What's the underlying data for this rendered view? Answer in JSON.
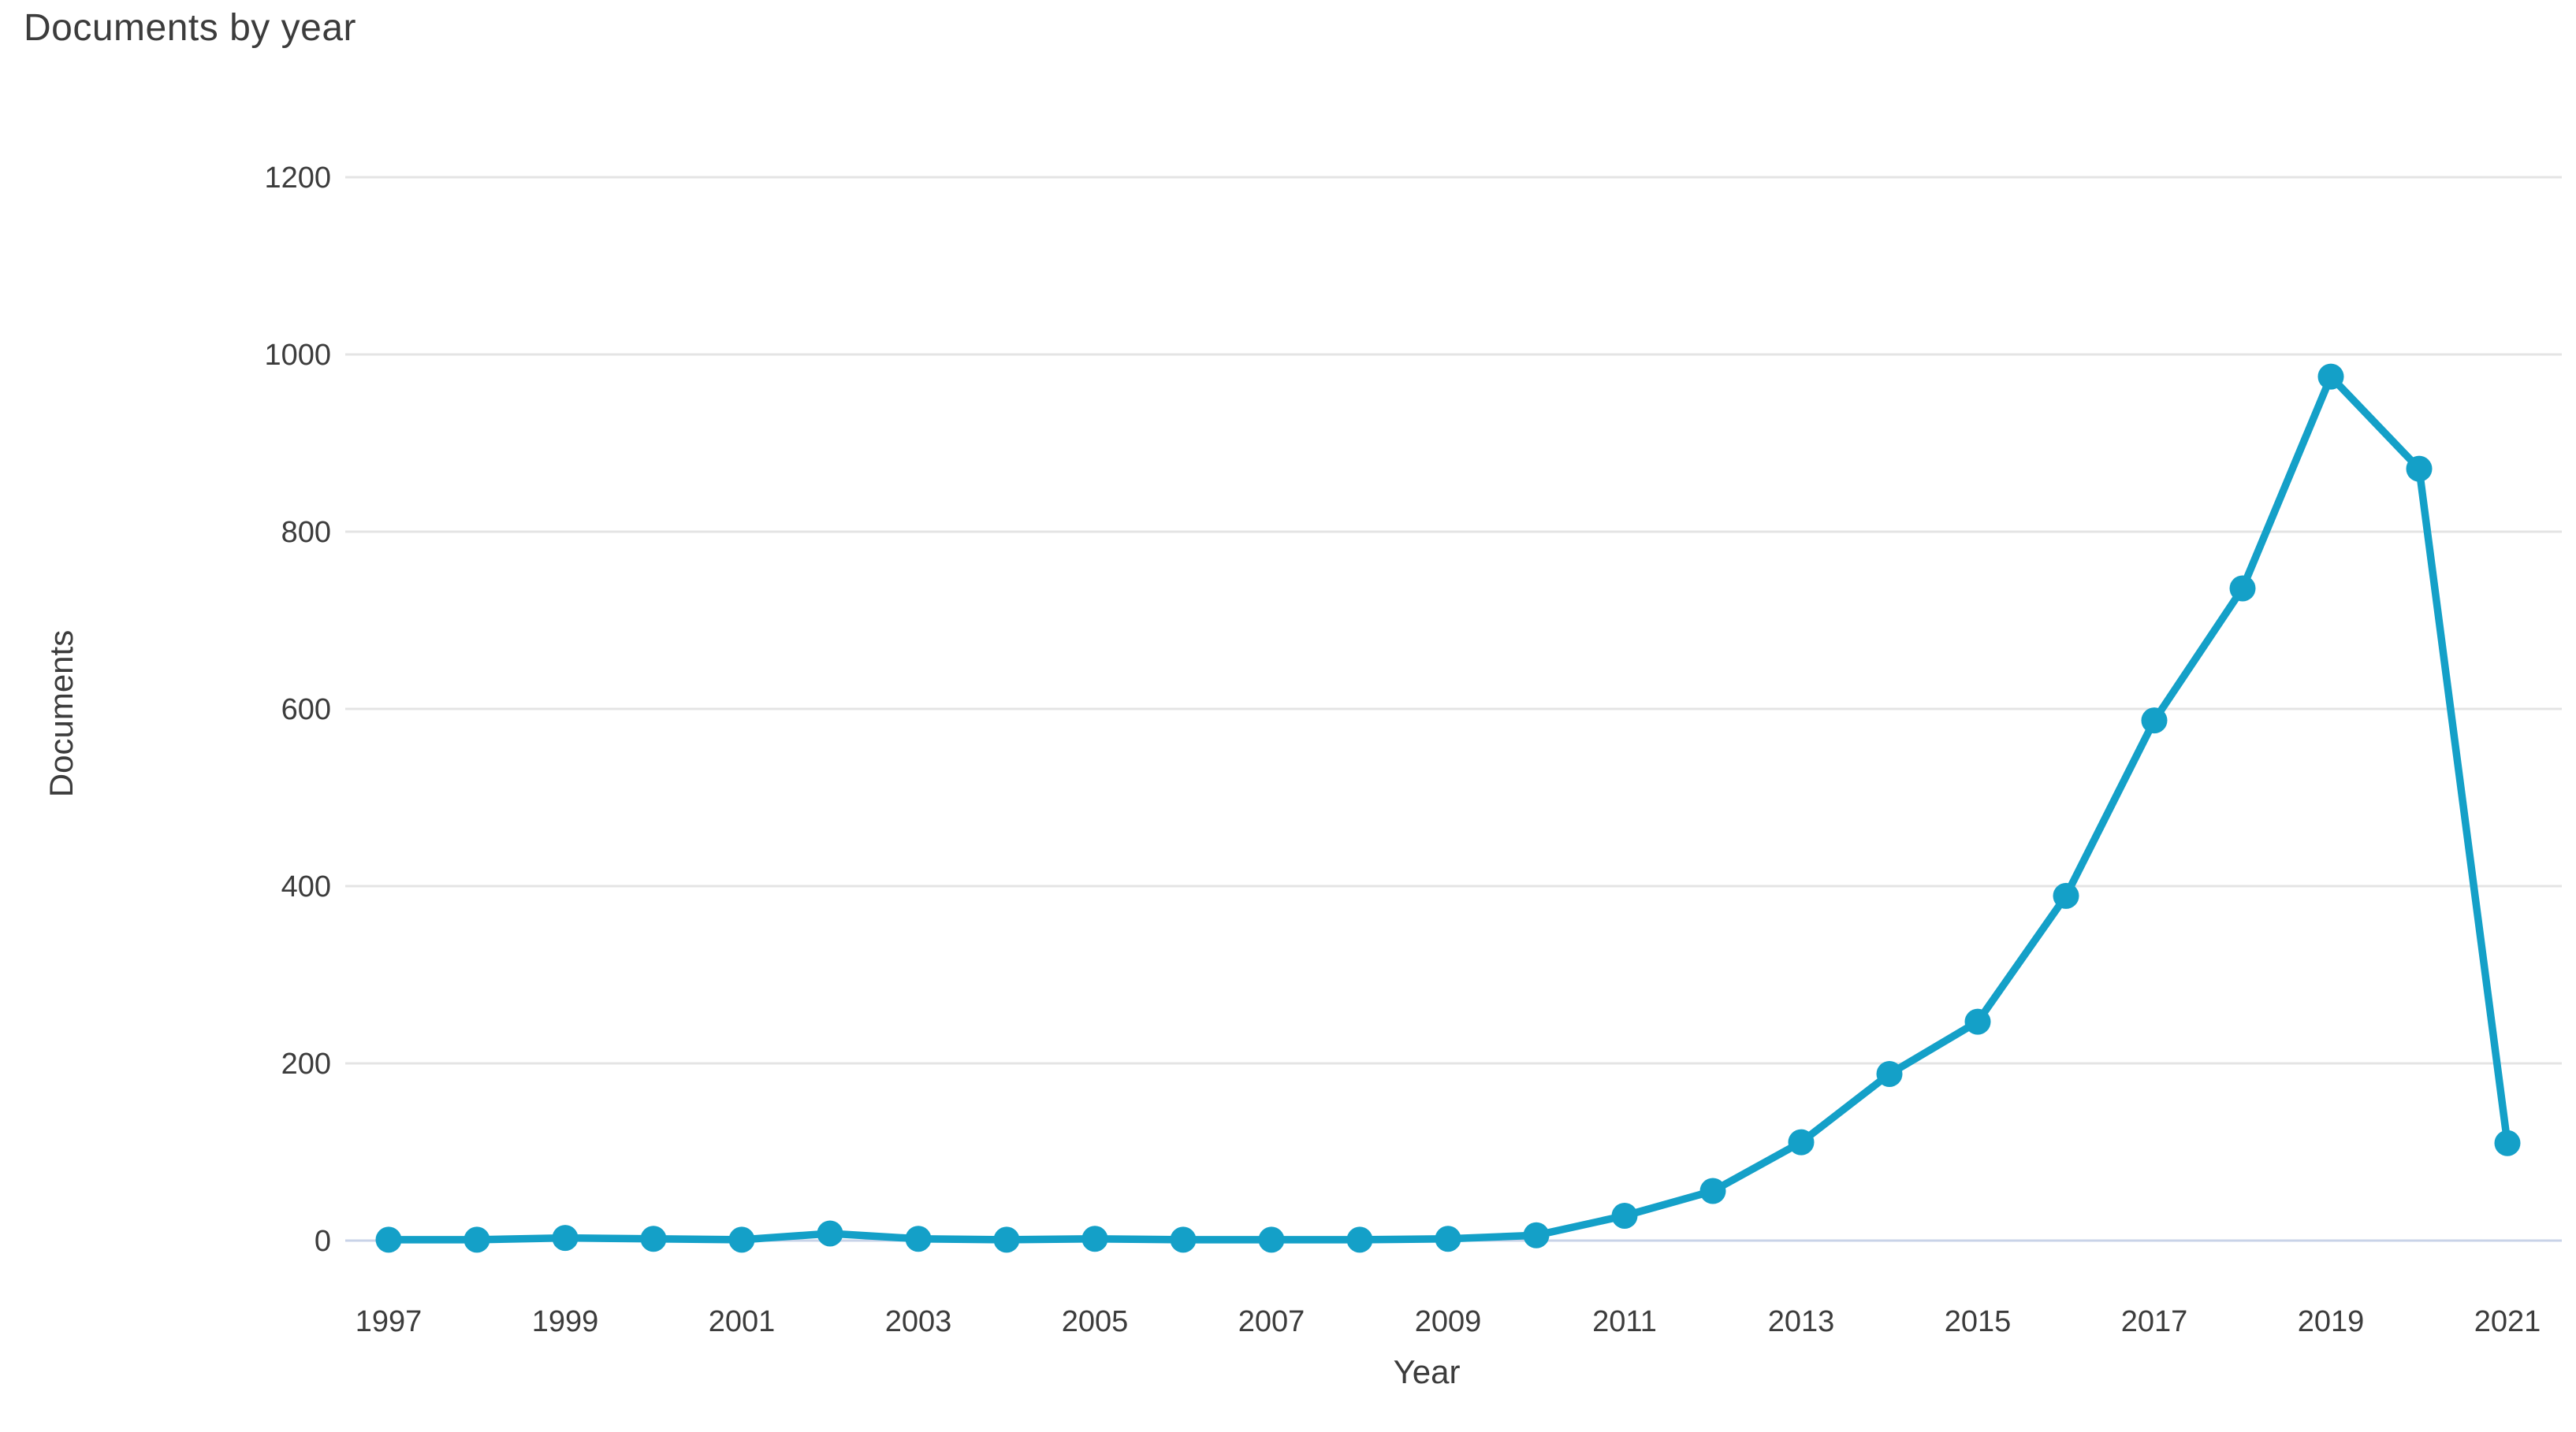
{
  "chart_data": {
    "type": "line",
    "title": "Documents by year",
    "xlabel": "Year",
    "ylabel": "Documents",
    "x": [
      1997,
      1998,
      1999,
      2000,
      2001,
      2002,
      2003,
      2004,
      2005,
      2006,
      2007,
      2008,
      2009,
      2010,
      2011,
      2012,
      2013,
      2014,
      2015,
      2016,
      2017,
      2018,
      2019,
      2020,
      2021
    ],
    "values": [
      1,
      1,
      3,
      2,
      1,
      8,
      2,
      1,
      2,
      1,
      1,
      1,
      2,
      6,
      28,
      56,
      111,
      188,
      247,
      389,
      587,
      736,
      975,
      871,
      110
    ],
    "series_name": "Documents",
    "ylim": [
      0,
      1200
    ],
    "yticks": [
      0,
      200,
      400,
      600,
      800,
      1000,
      1200
    ],
    "xticks": [
      1997,
      1999,
      2001,
      2003,
      2005,
      2007,
      2009,
      2011,
      2013,
      2015,
      2017,
      2019,
      2021
    ],
    "grid": true,
    "legend": "none",
    "colors": {
      "line": "#14a0c8",
      "marker": "#14a0c8",
      "gridline": "#e4e4e4",
      "zero_axis": "#c9d3e8",
      "text": "#3c3c3c"
    }
  }
}
